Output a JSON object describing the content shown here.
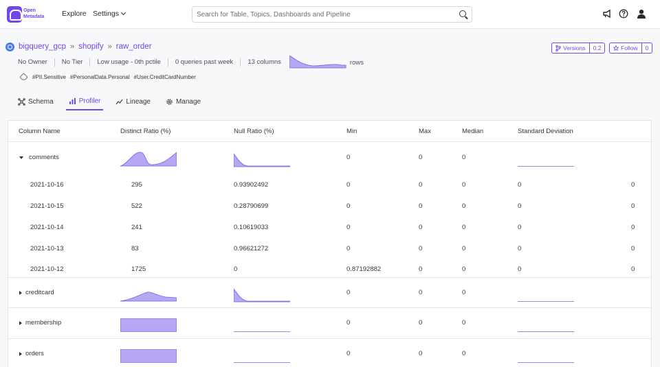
{
  "nav": {
    "logo_line1": "Open",
    "logo_line2": "Metadata",
    "explore": "Explore",
    "settings": "Settings",
    "search_placeholder": "Search for Table, Topics, Dashboards and Pipeline"
  },
  "breadcrumb": {
    "service": "bigquery_gcp",
    "database": "shopify",
    "table": "raw_order",
    "separator": "»"
  },
  "meta": {
    "owner": "No Owner",
    "tier": "No Tier",
    "usage": "Low usage - 0th pctile",
    "queries": "0 queries past week",
    "columns": "13 columns",
    "rows_label": "rows"
  },
  "tags": [
    "#PII.Sensitive",
    "#PersonalData.Personal",
    "#User.CreditCardNumber"
  ],
  "actions": {
    "versions_label": "Versions",
    "versions_count": "0.2",
    "follow_label": "Follow",
    "follow_count": "0"
  },
  "tabs": [
    "Schema",
    "Profiler",
    "Lineage",
    "Manage"
  ],
  "active_tab": "Profiler",
  "columns": [
    "Column Name",
    "Distinct Ratio (%)",
    "Null Ratio (%)",
    "Min",
    "Max",
    "Median",
    "Standard Deviation"
  ],
  "profile": [
    {
      "name": "comments",
      "expanded": true,
      "min": "0",
      "max": "0",
      "median": "0",
      "history": [
        {
          "date": "2021-10-16",
          "distinct": "295",
          "null": "0.93902492",
          "min": "0",
          "max": "0",
          "median": "0",
          "std": "0",
          "extra": "0"
        },
        {
          "date": "2021-10-15",
          "distinct": "522",
          "null": "0.28790699",
          "min": "0",
          "max": "0",
          "median": "0",
          "std": "0",
          "extra": "0"
        },
        {
          "date": "2021-10-14",
          "distinct": "241",
          "null": "0.10619033",
          "min": "0",
          "max": "0",
          "median": "0",
          "std": "0",
          "extra": "0"
        },
        {
          "date": "2021-10-13",
          "distinct": "83",
          "null": "0.96621272",
          "min": "0",
          "max": "0",
          "median": "0",
          "std": "0",
          "extra": "0"
        },
        {
          "date": "2021-10-12",
          "distinct": "1725",
          "null": "0",
          "min": "0.87192882",
          "max": "0",
          "median": "0",
          "std": "0",
          "extra": "0"
        }
      ]
    },
    {
      "name": "creditcard",
      "expanded": false,
      "min": "0",
      "max": "0",
      "median": "0"
    },
    {
      "name": "membership",
      "expanded": false,
      "min": "0",
      "max": "0",
      "median": "0"
    },
    {
      "name": "orders",
      "expanded": false,
      "min": "0",
      "max": "0",
      "median": "0"
    }
  ],
  "colors": {
    "accent": "#7147e8",
    "spark_fill": "#b7a6f2",
    "spark_stroke": "#7a5ce6"
  }
}
